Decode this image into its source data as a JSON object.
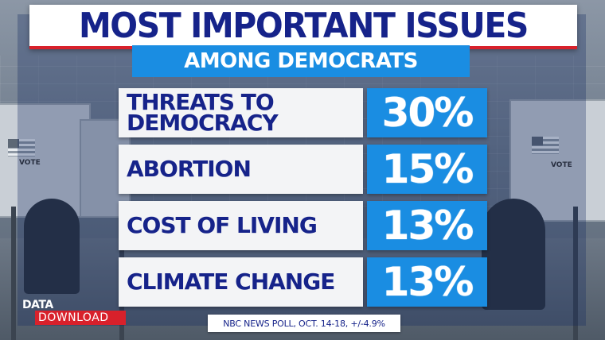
{
  "header": {
    "title": "MOST IMPORTANT ISSUES",
    "subtitle": "AMONG DEMOCRATS"
  },
  "chart_data": {
    "type": "table",
    "title": "MOST IMPORTANT ISSUES",
    "subtitle": "AMONG DEMOCRATS",
    "categories": [
      "THREATS TO\nDEMOCRACY",
      "ABORTION",
      "COST OF LIVING",
      "CLIMATE CHANGE"
    ],
    "values": [
      30,
      15,
      13,
      13
    ],
    "value_labels": [
      "30%",
      "15%",
      "13%",
      "13%"
    ],
    "unit": "%"
  },
  "branding": {
    "line1": "DATA",
    "line2": "DOWNLOAD"
  },
  "source": "NBC NEWS POLL, OCT. 14-18, +/-4.9%",
  "colors": {
    "navy": "#16238a",
    "accent_blue": "#1a8de2",
    "accent_red": "#d8212b"
  },
  "background": {
    "booth_text": "VOTE"
  }
}
